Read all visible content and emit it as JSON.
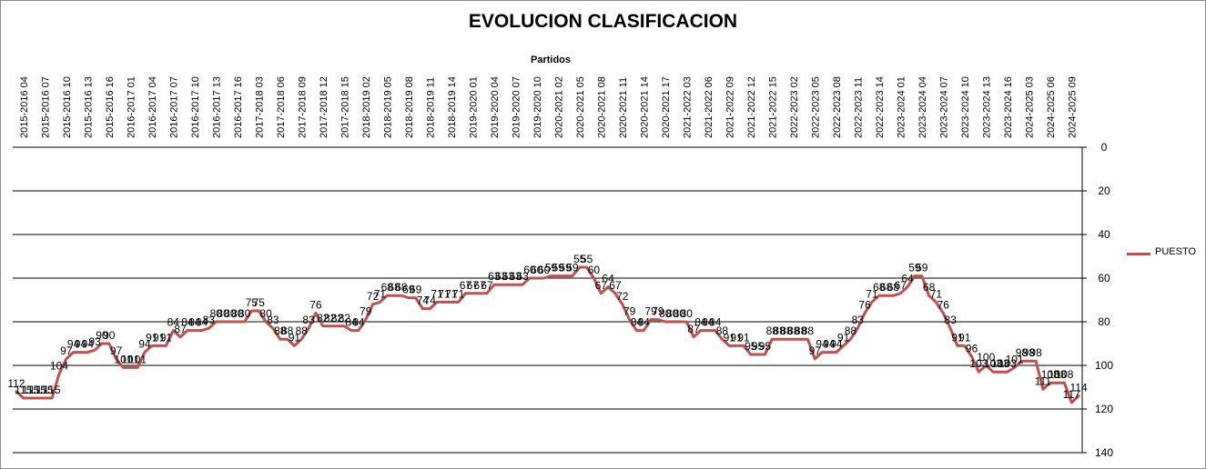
{
  "chart_data": {
    "type": "line",
    "title": "EVOLUCION CLASIFICACION",
    "xlabel": "Partidos",
    "ylabel": "",
    "yaxis": {
      "position": "right",
      "reversed": true,
      "ylim": [
        0,
        140
      ],
      "ticks": [
        0,
        20,
        40,
        60,
        80,
        100,
        120,
        140
      ]
    },
    "grid": true,
    "legend": "right",
    "x_tick_labels": [
      "2015-2016 04",
      "2015-2016 07",
      "2015-2016 10",
      "2015-2016 13",
      "2015-2016 16",
      "2016-2017 01",
      "2016-2017 04",
      "2016-2017 07",
      "2016-2017 10",
      "2016-2017 13",
      "2016-2017 16",
      "2017-2018 03",
      "2017-2018 06",
      "2017-2018 09",
      "2017-2018 12",
      "2017-2018 15",
      "2018-2019 02",
      "2018-2019 05",
      "2018-2019 08",
      "2018-2019 11",
      "2018-2019 14",
      "2019-2020 01",
      "2019-2020 04",
      "2019-2020 07",
      "2019-2020 10",
      "2020-2021 02",
      "2020-2021 05",
      "2020-2021 08",
      "2020-2021 11",
      "2020-2021 14",
      "2020-2021 17",
      "2021-2022 03",
      "2021-2022 06",
      "2021-2022 09",
      "2021-2022 12",
      "2021-2022 15",
      "2022-2023 02",
      "2022-2023 05",
      "2022-2023 08",
      "2022-2023 11",
      "2022-2023 14",
      "2023-2024 01",
      "2023-2024 04",
      "2023-2024 07",
      "2023-2024 10",
      "2023-2024 13",
      "2023-2024 16",
      "2024-2025 03",
      "2024-2025 06",
      "2024-2025 09"
    ],
    "series": [
      {
        "name": "PUESTO",
        "color": "#c0504d",
        "values": [
          112,
          115,
          115,
          115,
          115,
          115,
          104,
          97,
          94,
          94,
          94,
          93,
          90,
          90,
          97,
          101,
          101,
          101,
          94,
          91,
          91,
          91,
          84,
          87,
          84,
          84,
          84,
          83,
          80,
          80,
          80,
          80,
          80,
          75,
          75,
          80,
          83,
          88,
          88,
          91,
          88,
          83,
          76,
          82,
          82,
          82,
          82,
          84,
          84,
          79,
          72,
          71,
          68,
          68,
          68,
          69,
          69,
          74,
          74,
          71,
          71,
          71,
          71,
          67,
          67,
          67,
          67,
          63,
          63,
          63,
          63,
          63,
          60,
          60,
          60,
          59,
          59,
          59,
          59,
          55,
          55,
          60,
          67,
          64,
          67,
          72,
          79,
          84,
          84,
          79,
          79,
          80,
          80,
          80,
          80,
          87,
          84,
          84,
          84,
          88,
          91,
          91,
          91,
          95,
          95,
          95,
          88,
          88,
          88,
          88,
          88,
          88,
          97,
          94,
          94,
          94,
          91,
          88,
          83,
          76,
          71,
          68,
          68,
          68,
          67,
          64,
          59,
          59,
          68,
          71,
          76,
          83,
          91,
          91,
          96,
          103,
          100,
          103,
          103,
          103,
          101,
          98,
          98,
          98,
          111,
          108,
          108,
          108,
          117,
          114
        ]
      }
    ],
    "data_labels": [
      "112",
      "115",
      "115",
      "115",
      "115",
      "115",
      "104",
      "97",
      "94",
      "94",
      "94",
      "93",
      "90",
      "90",
      "97",
      "101",
      "101",
      "101",
      "94",
      "91",
      "91",
      "91",
      "84",
      "87",
      "84",
      "84",
      "84",
      "83",
      "80",
      "80",
      "80",
      "80",
      "80",
      "75",
      "75",
      "80",
      "83",
      "88",
      "88",
      "91",
      "88",
      "83",
      "76",
      "82",
      "82",
      "82",
      "82",
      "84",
      "84",
      "79",
      "72",
      "71",
      "68",
      "68",
      "68",
      "69",
      "69",
      "74",
      "74",
      "71",
      "71",
      "71",
      "71",
      "67",
      "67",
      "67",
      "67",
      "63",
      "63",
      "63",
      "63",
      "63",
      "60",
      "60",
      "60",
      "59",
      "59",
      "59",
      "59",
      "55",
      "55",
      "60",
      "67",
      "64",
      "67",
      "72",
      "79",
      "84",
      "84",
      "79",
      "79",
      "80",
      "80",
      "80",
      "80",
      "87",
      "84",
      "84",
      "84",
      "88",
      "91",
      "91",
      "91",
      "95",
      "95",
      "95",
      "88",
      "88",
      "88",
      "88",
      "88",
      "88",
      "97",
      "94",
      "94",
      "94",
      "91",
      "88",
      "83",
      "76",
      "71",
      "68",
      "68",
      "68",
      "67",
      "64",
      "59",
      "59",
      "68",
      "71",
      "76",
      "83",
      "91",
      "91",
      "96",
      "103",
      "100",
      "103",
      "103",
      "103",
      "101",
      "98",
      "98",
      "98",
      "111",
      "108",
      "108",
      "108",
      "117",
      "114"
    ]
  }
}
